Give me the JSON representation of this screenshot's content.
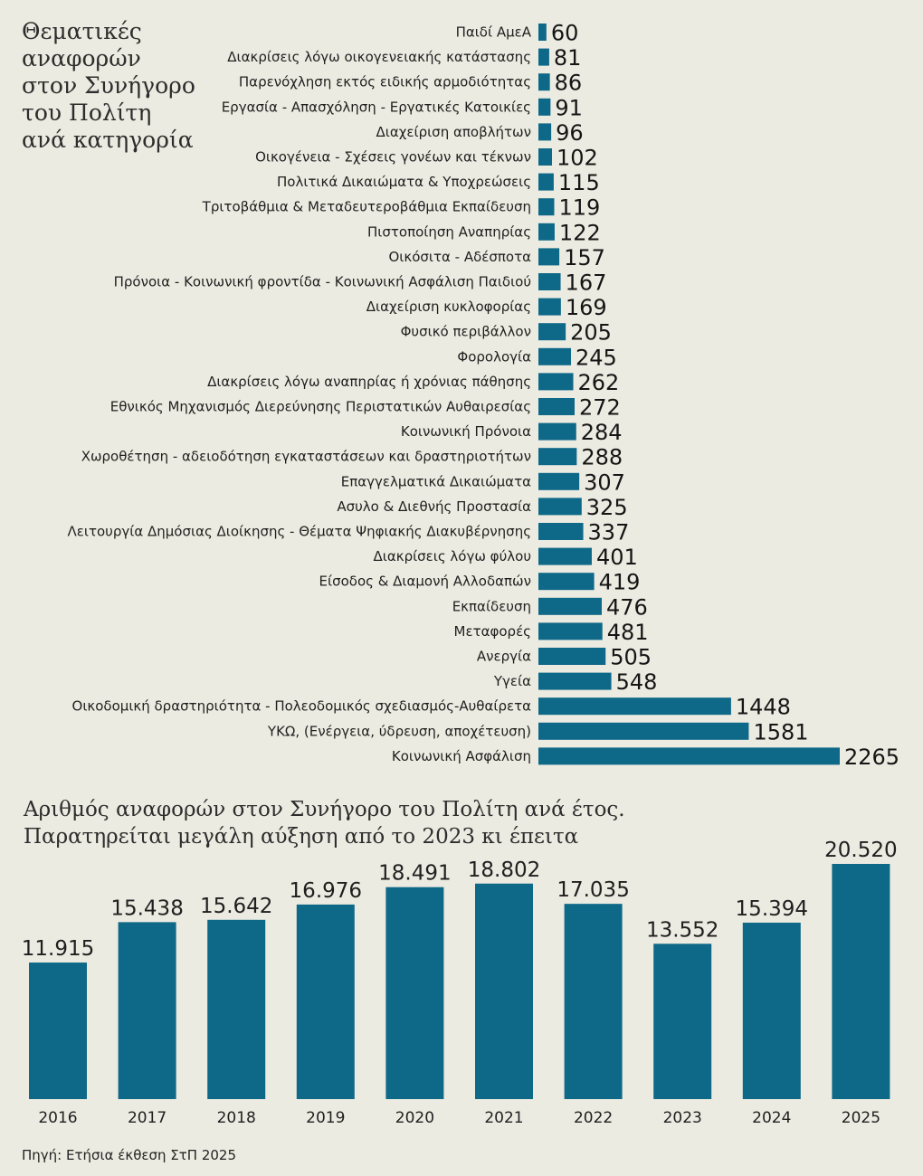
{
  "title_categories": [
    "Θεματικές",
    "αναφορών",
    "στον Συνήγορο",
    "του Πολίτη",
    "ανά κατηγορία"
  ],
  "title_years": [
    "Αριθμός αναφορών στον Συνήγορο του Πολίτη ανά έτος.",
    "Παρατηρείται μεγάλη αύξηση από το 2023 κι έπειτα"
  ],
  "source": "Πηγή: Ετήσια έκθεση ΣτΠ 2025",
  "colors": {
    "bar": "#0e6888",
    "background": "#ecebe1"
  },
  "chart_data": [
    {
      "type": "bar",
      "orientation": "horizontal",
      "categories": [
        "Παιδί ΑμεΑ",
        "Διακρίσεις λόγω οικογενειακής κατάστασης",
        "Παρενόχληση εκτός ειδικής αρμοδιότητας",
        "Εργασία - Απασχόληση - Εργατικές Κατοικίες",
        "Διαχείριση αποβλήτων",
        "Οικογένεια - Σχέσεις γονέων και τέκνων",
        "Πολιτικά Δικαιώματα & Υποχρεώσεις",
        "Τριτοβάθμια & Μεταδευτεροβάθμια Εκπαίδευση",
        "Πιστοποίηση Αναπηρίας",
        "Οικόσιτα - Αδέσποτα",
        "Πρόνοια - Κοινωνική φροντίδα - Κοινωνική Ασφάλιση Παιδιού",
        "Διαχείριση κυκλοφορίας",
        "Φυσικό περιβάλλον",
        "Φορολογία",
        "Διακρίσεις λόγω αναπηρίας ή χρόνιας πάθησης",
        "Εθνικός Μηχανισμός Διερεύνησης Περιστατικών Αυθαιρεσίας",
        "Κοινωνική Πρόνοια",
        "Χωροθέτηση - αδειοδότηση εγκαταστάσεων και δραστηριοτήτων",
        "Επαγγελματικά Δικαιώματα",
        "Ασυλο & Διεθνής Προστασία",
        "Λειτουργία Δημόσιας Διοίκησης - Θέματα Ψηφιακής Διακυβέρνησης",
        "Διακρίσεις λόγω φύλου",
        "Είσοδος & Διαμονή Αλλοδαπών",
        "Εκπαίδευση",
        "Μεταφορές",
        "Ανεργία",
        "Υγεία",
        "Οικοδομική δραστηριότητα - Πολεοδομικός σχεδιασμός-Αυθαίρετα",
        "ΥΚΩ, (Ενέργεια, ύδρευση, αποχέτευση)",
        "Κοινωνική Ασφάλιση"
      ],
      "values": [
        60,
        81,
        86,
        91,
        96,
        102,
        115,
        119,
        122,
        157,
        167,
        169,
        205,
        245,
        262,
        272,
        284,
        288,
        307,
        325,
        337,
        401,
        419,
        476,
        481,
        505,
        548,
        1448,
        1581,
        2265
      ],
      "value_labels": [
        "60",
        "81",
        "86",
        "91",
        "96",
        "102",
        "115",
        "119",
        "122",
        "157",
        "167",
        "169",
        "205",
        "245",
        "262",
        "272",
        "284",
        "288",
        "307",
        "325",
        "337",
        "401",
        "419",
        "476",
        "481",
        "505",
        "548",
        "1448",
        "1581",
        "2265"
      ],
      "title": "Θεματικές αναφορών στον Συνήγορο του Πολίτη ανά κατηγορία",
      "xlim": [
        0,
        2265
      ],
      "grid": false
    },
    {
      "type": "bar",
      "orientation": "vertical",
      "categories": [
        "2016",
        "2017",
        "2018",
        "2019",
        "2020",
        "2021",
        "2022",
        "2023",
        "2024",
        "2025"
      ],
      "values": [
        11915,
        15438,
        15642,
        16976,
        18491,
        18802,
        17035,
        13552,
        15394,
        20520
      ],
      "value_labels": [
        "11.915",
        "15.438",
        "15.642",
        "16.976",
        "18.491",
        "18.802",
        "17.035",
        "13.552",
        "15.394",
        "20.520"
      ],
      "title": "Αριθμός αναφορών στον Συνήγορο του Πολίτη ανά έτος. Παρατηρείται μεγάλη αύξηση από το 2023 κι έπειτα",
      "ylim": [
        0,
        20520
      ],
      "grid": false
    }
  ]
}
